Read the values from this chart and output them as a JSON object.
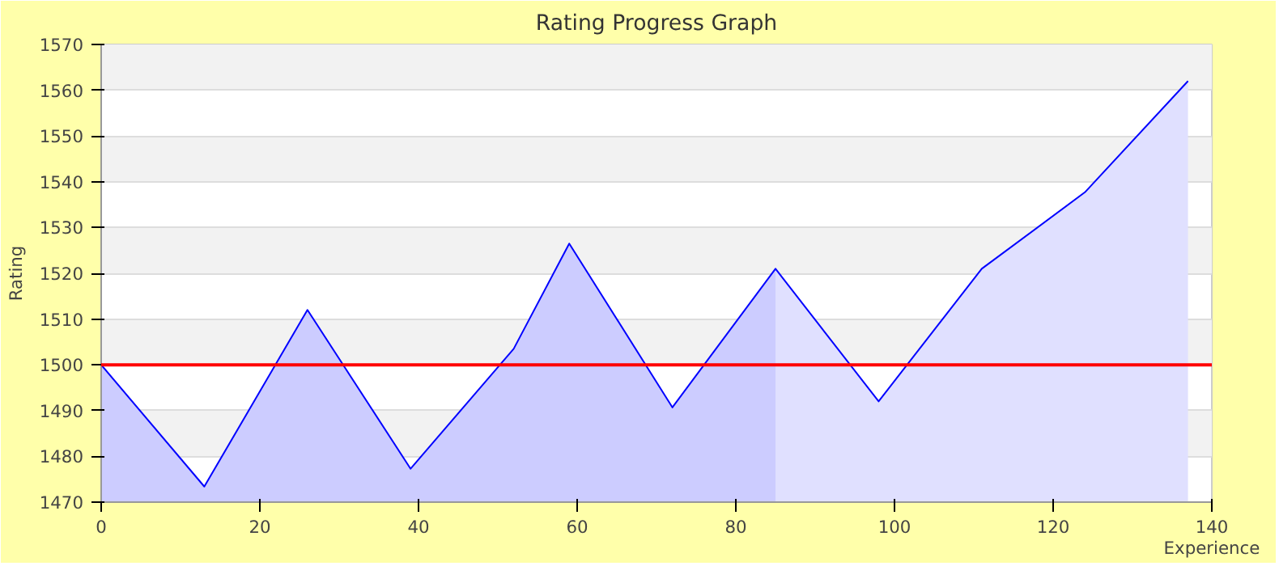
{
  "chart_data": {
    "type": "line",
    "title": "Rating Progress Graph",
    "xlabel": "Experience",
    "ylabel": "Rating",
    "xlim": [
      0,
      140
    ],
    "xticks": [
      0,
      20,
      40,
      60,
      80,
      100,
      120,
      140
    ],
    "ylim": [
      1470,
      1570
    ],
    "yticks": [
      1470,
      1480,
      1490,
      1500,
      1510,
      1520,
      1530,
      1540,
      1550,
      1560,
      1570
    ],
    "grid": "y",
    "marker": "none",
    "series": [
      {
        "type": "area",
        "color": "#ccccff",
        "x": [
          0,
          13,
          26,
          39,
          52,
          59,
          72,
          85
        ],
        "values": [
          1500,
          1473.4,
          1512,
          1477.3,
          1503.5,
          1526.5,
          1490.7,
          1521
        ]
      },
      {
        "type": "area",
        "color": "#e0e0ff",
        "x": [
          85,
          98,
          111,
          124,
          137
        ],
        "values": [
          1521,
          1492,
          1521,
          1537.7,
          1562
        ]
      },
      {
        "color": "#0000ff",
        "x": [
          0,
          13,
          26,
          39,
          52,
          59,
          72,
          85,
          98,
          111,
          124,
          137
        ],
        "values": [
          1500,
          1473.4,
          1512,
          1477.3,
          1503.5,
          1526.5,
          1490.7,
          1521,
          1492,
          1521,
          1537.7,
          1562
        ]
      }
    ],
    "ref_lines": [
      {
        "axis": "y",
        "value": 1500,
        "color": "#ff0000"
      }
    ]
  }
}
